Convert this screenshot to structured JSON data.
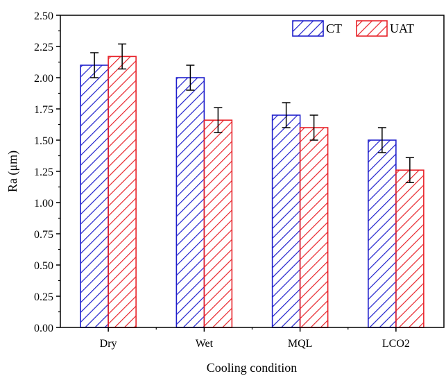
{
  "chart_data": {
    "type": "bar",
    "title": "",
    "xlabel": "Cooling condition",
    "ylabel": "Ra (μm)",
    "categories": [
      "Dry",
      "Wet",
      "MQL",
      "LCO2"
    ],
    "ylim": [
      0,
      2.5
    ],
    "yticks": [
      "0.00",
      "0.25",
      "0.50",
      "0.75",
      "1.00",
      "1.25",
      "1.50",
      "1.75",
      "2.00",
      "2.25",
      "2.50"
    ],
    "legend_position": "top-right",
    "grid": false,
    "series": [
      {
        "name": "CT",
        "values": [
          2.1,
          2.0,
          1.7,
          1.5
        ],
        "errors": [
          0.1,
          0.1,
          0.1,
          0.1
        ],
        "color": "#1f1fcc",
        "pattern": "diagonal-hatch"
      },
      {
        "name": "UAT",
        "values": [
          2.17,
          1.66,
          1.6,
          1.26
        ],
        "errors": [
          0.1,
          0.1,
          0.1,
          0.1
        ],
        "color": "#e8232a",
        "pattern": "diagonal-hatch"
      }
    ]
  }
}
